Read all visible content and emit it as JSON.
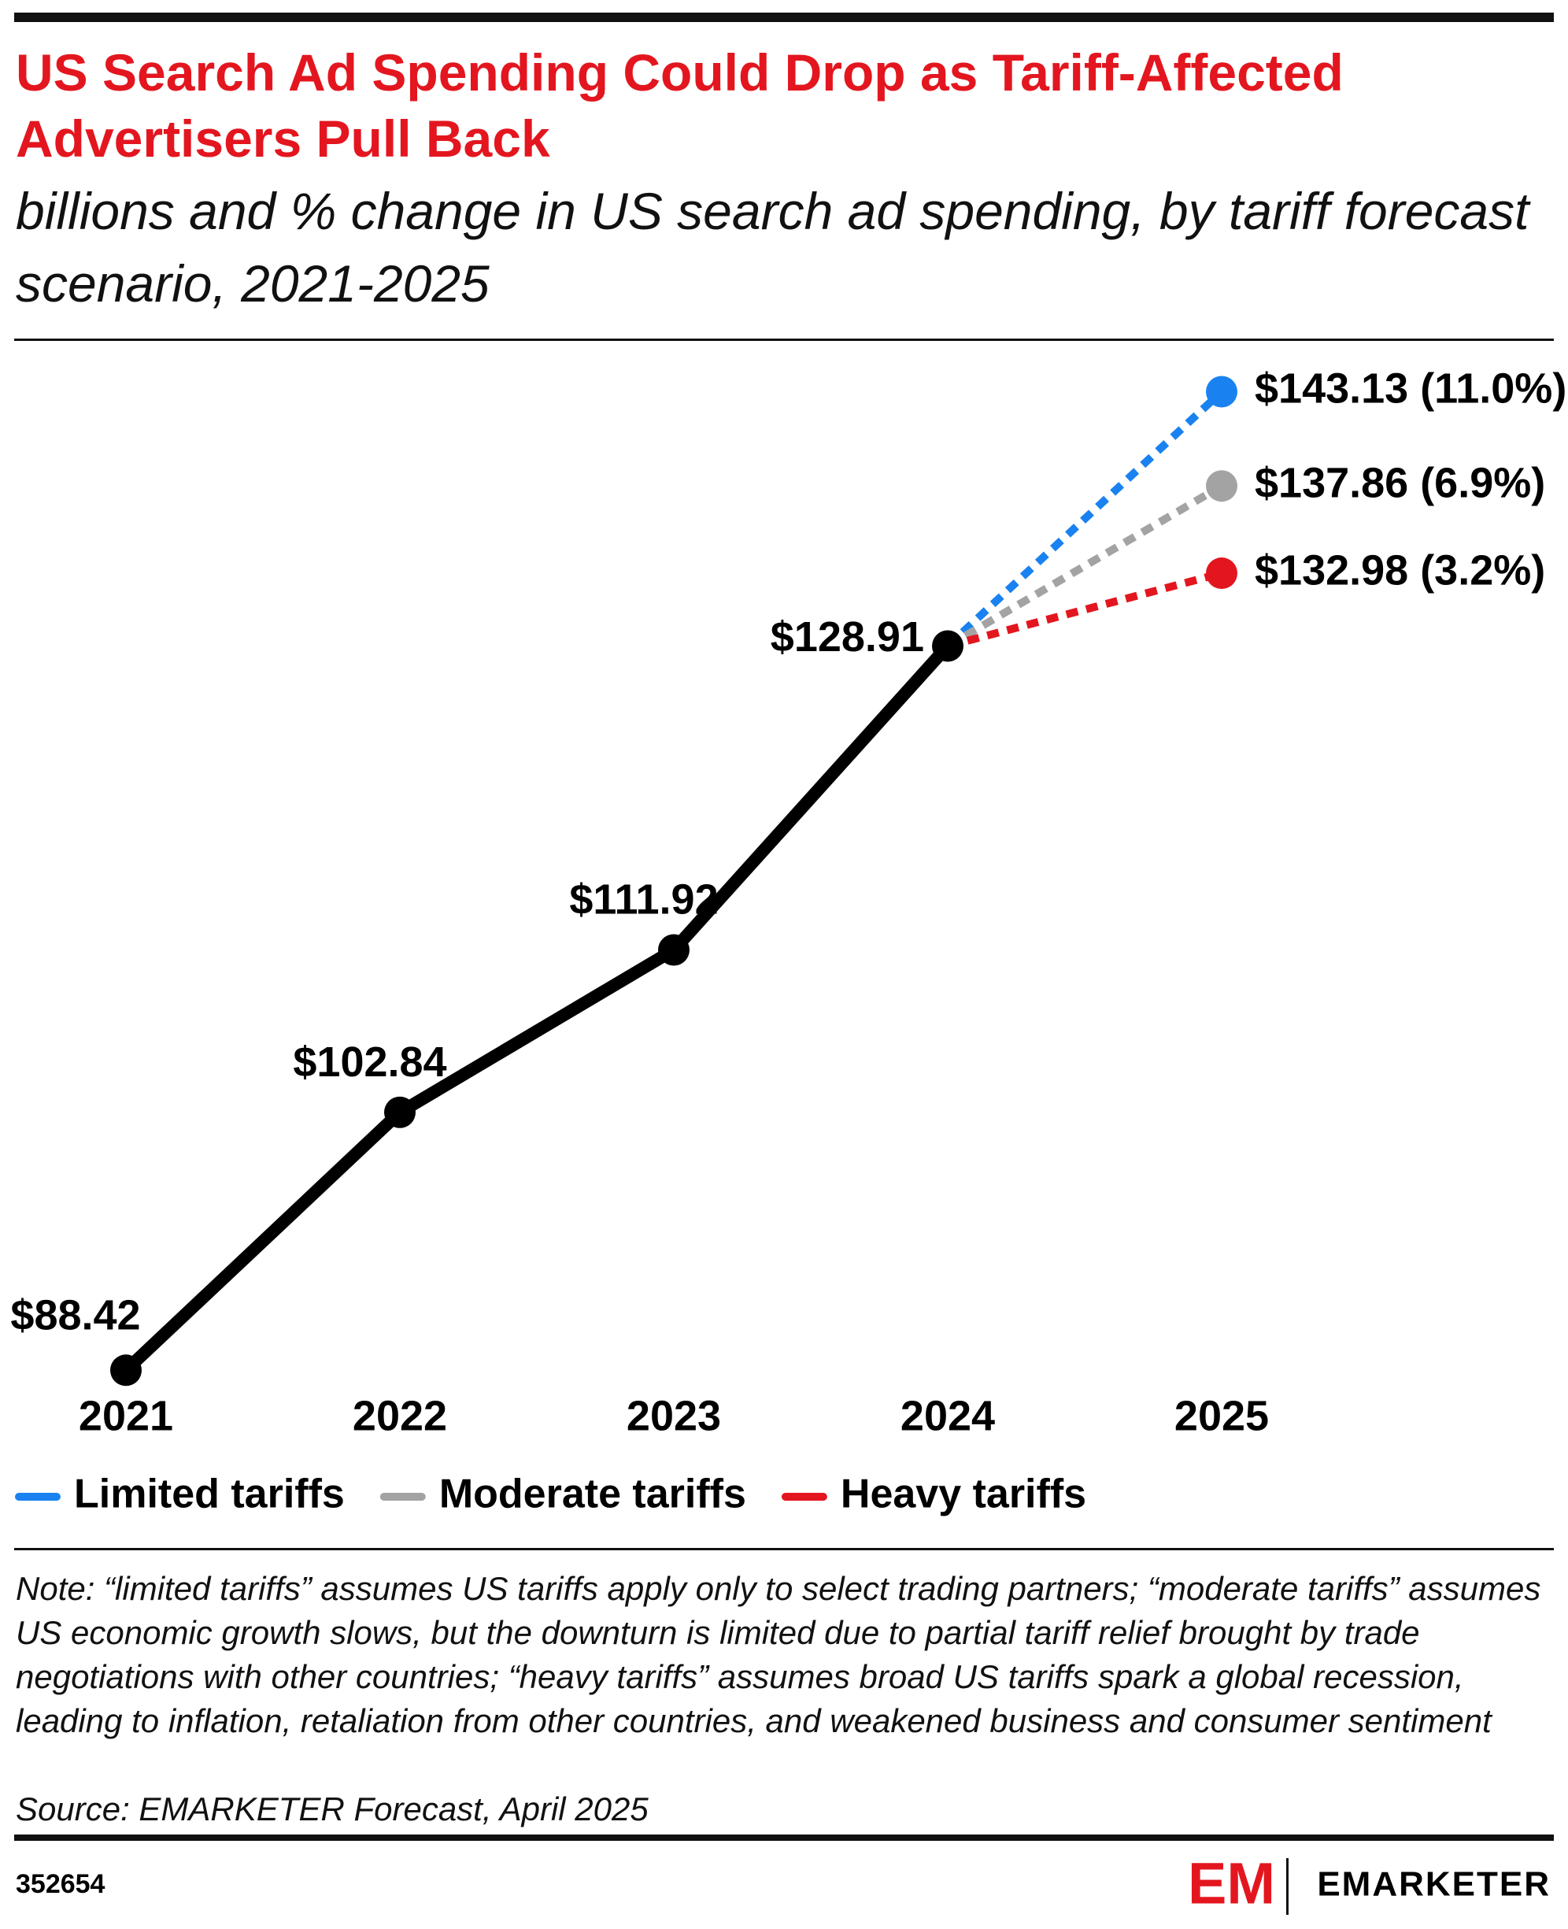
{
  "chart_data": {
    "type": "line",
    "title": "US Search Ad Spending Could Drop as Tariff-Affected Advertisers Pull Back",
    "subtitle": "billions and % change in US search ad spending, by tariff forecast scenario, 2021-2025",
    "categories": [
      "2021",
      "2022",
      "2023",
      "2024",
      "2025"
    ],
    "series": [
      {
        "color": "#000000",
        "values": [
          88.42,
          102.84,
          111.92,
          128.91,
          null
        ],
        "value_labels": [
          "$88.42",
          "$102.84",
          "$111.92",
          "$128.91",
          null
        ]
      },
      {
        "name": "Limited tariffs",
        "color": "#1a82f0",
        "dashed": true,
        "values": [
          null,
          null,
          null,
          128.91,
          143.13
        ],
        "pct_change": [
          null,
          null,
          null,
          null,
          11.0
        ],
        "value_labels": [
          null,
          null,
          null,
          null,
          "$143.13 (11.0%)"
        ]
      },
      {
        "name": "Moderate tariffs",
        "color": "#a3a3a3",
        "dashed": true,
        "values": [
          null,
          null,
          null,
          128.91,
          137.86
        ],
        "pct_change": [
          null,
          null,
          null,
          null,
          6.9
        ],
        "value_labels": [
          null,
          null,
          null,
          null,
          "$137.86 (6.9%)"
        ]
      },
      {
        "name": "Heavy tariffs",
        "color": "#e3161f",
        "dashed": true,
        "values": [
          null,
          null,
          null,
          128.91,
          132.98
        ],
        "pct_change": [
          null,
          null,
          null,
          null,
          3.2
        ],
        "value_labels": [
          null,
          null,
          null,
          null,
          "$132.98 (3.2%)"
        ]
      }
    ],
    "ylim": [
      85,
      145
    ],
    "note": "Note: “limited tariffs” assumes US tariffs apply only to select trading partners; “moderate tariffs” assumes US economic growth slows, but the downturn is limited due to partial tariff relief brought by trade negotiations with other countries; “heavy tariffs” assumes broad US tariffs spark a global recession, leading to inflation, retaliation from other countries, and weakened business and consumer sentiment",
    "source": "Source: EMARKETER Forecast, April 2025",
    "chart_id": "352654",
    "logo_mark": "EM",
    "brand": "EMARKETER"
  }
}
